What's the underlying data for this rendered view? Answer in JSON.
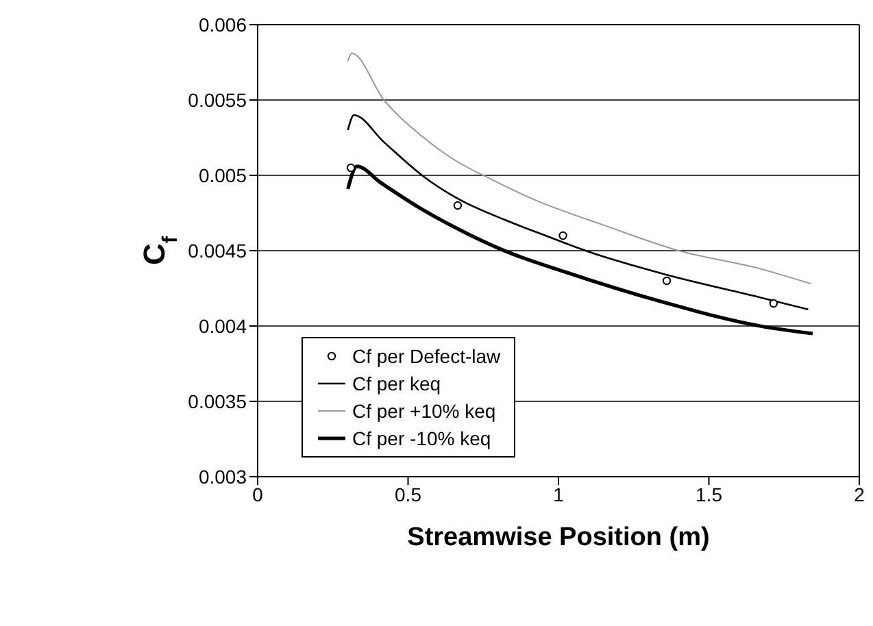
{
  "chart_data": {
    "type": "line",
    "xlabel": "Streamwise Position (m)",
    "ylabel": "C$_{f}$",
    "xlim": [
      0,
      2
    ],
    "xticks": [
      0,
      0.5,
      1,
      1.5,
      2
    ],
    "ylim": [
      0.003,
      0.006
    ],
    "yticks": [
      0.003,
      0.0035,
      0.004,
      0.0045,
      0.005,
      0.0055,
      0.006
    ],
    "grid": "y",
    "legend": "bottom left",
    "marker": "none",
    "line_style": "solid",
    "series": [
      {
        "name": "Cf per Defect-law",
        "type": "scatter",
        "marker": "circle",
        "color": "#000000",
        "x": [
          0.31,
          0.665,
          1.015,
          1.36,
          1.715
        ],
        "values": [
          0.00505,
          0.0048,
          0.0046,
          0.0043,
          0.00415
        ]
      },
      {
        "name": "Cf per keq",
        "color": "#000000",
        "x": [
          0.3,
          0.32,
          0.42,
          0.553,
          0.67,
          0.815,
          0.957,
          1.09,
          1.36,
          1.67,
          1.83
        ],
        "values": [
          0.0053,
          0.0054,
          0.00522,
          0.00499,
          0.00484,
          0.00471,
          0.0046,
          0.0045,
          0.00434,
          0.00419,
          0.00411
        ]
      },
      {
        "name": "Cf per +10% keq",
        "color": "#999999",
        "x": [
          0.3,
          0.313,
          0.42,
          0.546,
          0.656,
          0.76,
          0.93,
          1.15,
          1.4,
          1.67,
          1.84
        ],
        "values": [
          0.00576,
          0.00581,
          0.0055,
          0.00526,
          0.0051,
          0.00499,
          0.00483,
          0.00467,
          0.0045,
          0.00438,
          0.00428
        ]
      },
      {
        "name": "Cf per -10% keq",
        "color": "#000000",
        "x": [
          0.3,
          0.33,
          0.41,
          0.55,
          0.7,
          0.82,
          1.02,
          1.345,
          1.67,
          1.845
        ],
        "values": [
          0.00491,
          0.00506,
          0.00495,
          0.00477,
          0.00461,
          0.0045,
          0.00436,
          0.00416,
          0.004,
          0.00395
        ]
      }
    ]
  }
}
